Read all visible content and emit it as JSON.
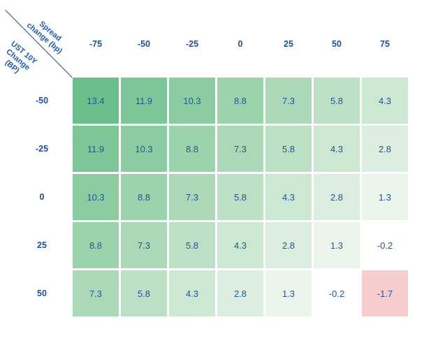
{
  "header": {
    "corner": {
      "spread_line1": "Spread",
      "spread_line2": "change (bp)",
      "ust_line1": "UST 10Y",
      "ust_line2": "Change",
      "ust_line3": "(BP)"
    }
  },
  "colors": {
    "header_text": "#1d4f9f",
    "corner_text": "#1d5cb5",
    "cell_text": "#1e5796",
    "diagonal_line": "#1d4f9f",
    "background": "#ffffff"
  },
  "chart_data": {
    "type": "heatmap",
    "x_label": "Spread change (bp)",
    "y_label": "UST 10Y Change (BP)",
    "columns": [
      "-75",
      "-50",
      "-25",
      "0",
      "25",
      "50",
      "75"
    ],
    "rows": [
      "-50",
      "-25",
      "0",
      "25",
      "50"
    ],
    "values": [
      [
        13.4,
        11.9,
        10.3,
        8.8,
        7.3,
        5.8,
        4.3
      ],
      [
        11.9,
        10.3,
        8.8,
        7.3,
        5.8,
        4.3,
        2.8
      ],
      [
        10.3,
        8.8,
        7.3,
        5.8,
        4.3,
        2.8,
        1.3
      ],
      [
        8.8,
        7.3,
        5.8,
        4.3,
        2.8,
        1.3,
        -0.2
      ],
      [
        7.3,
        5.8,
        4.3,
        2.8,
        1.3,
        -0.2,
        -1.7
      ]
    ],
    "value_colors": {
      "13.4": "#6bbf8b",
      "11.9": "#7cc697",
      "10.3": "#8bcca1",
      "8.8": "#9bd3ab",
      "7.3": "#abd9b7",
      "5.8": "#bce0c4",
      "4.3": "#cce7d2",
      "2.8": "#dceee0",
      "1.3": "#ebf5ec",
      "-0.2": "#ffffff",
      "-1.7": "#f7cdce"
    },
    "legend_position": "none",
    "grid": false
  }
}
